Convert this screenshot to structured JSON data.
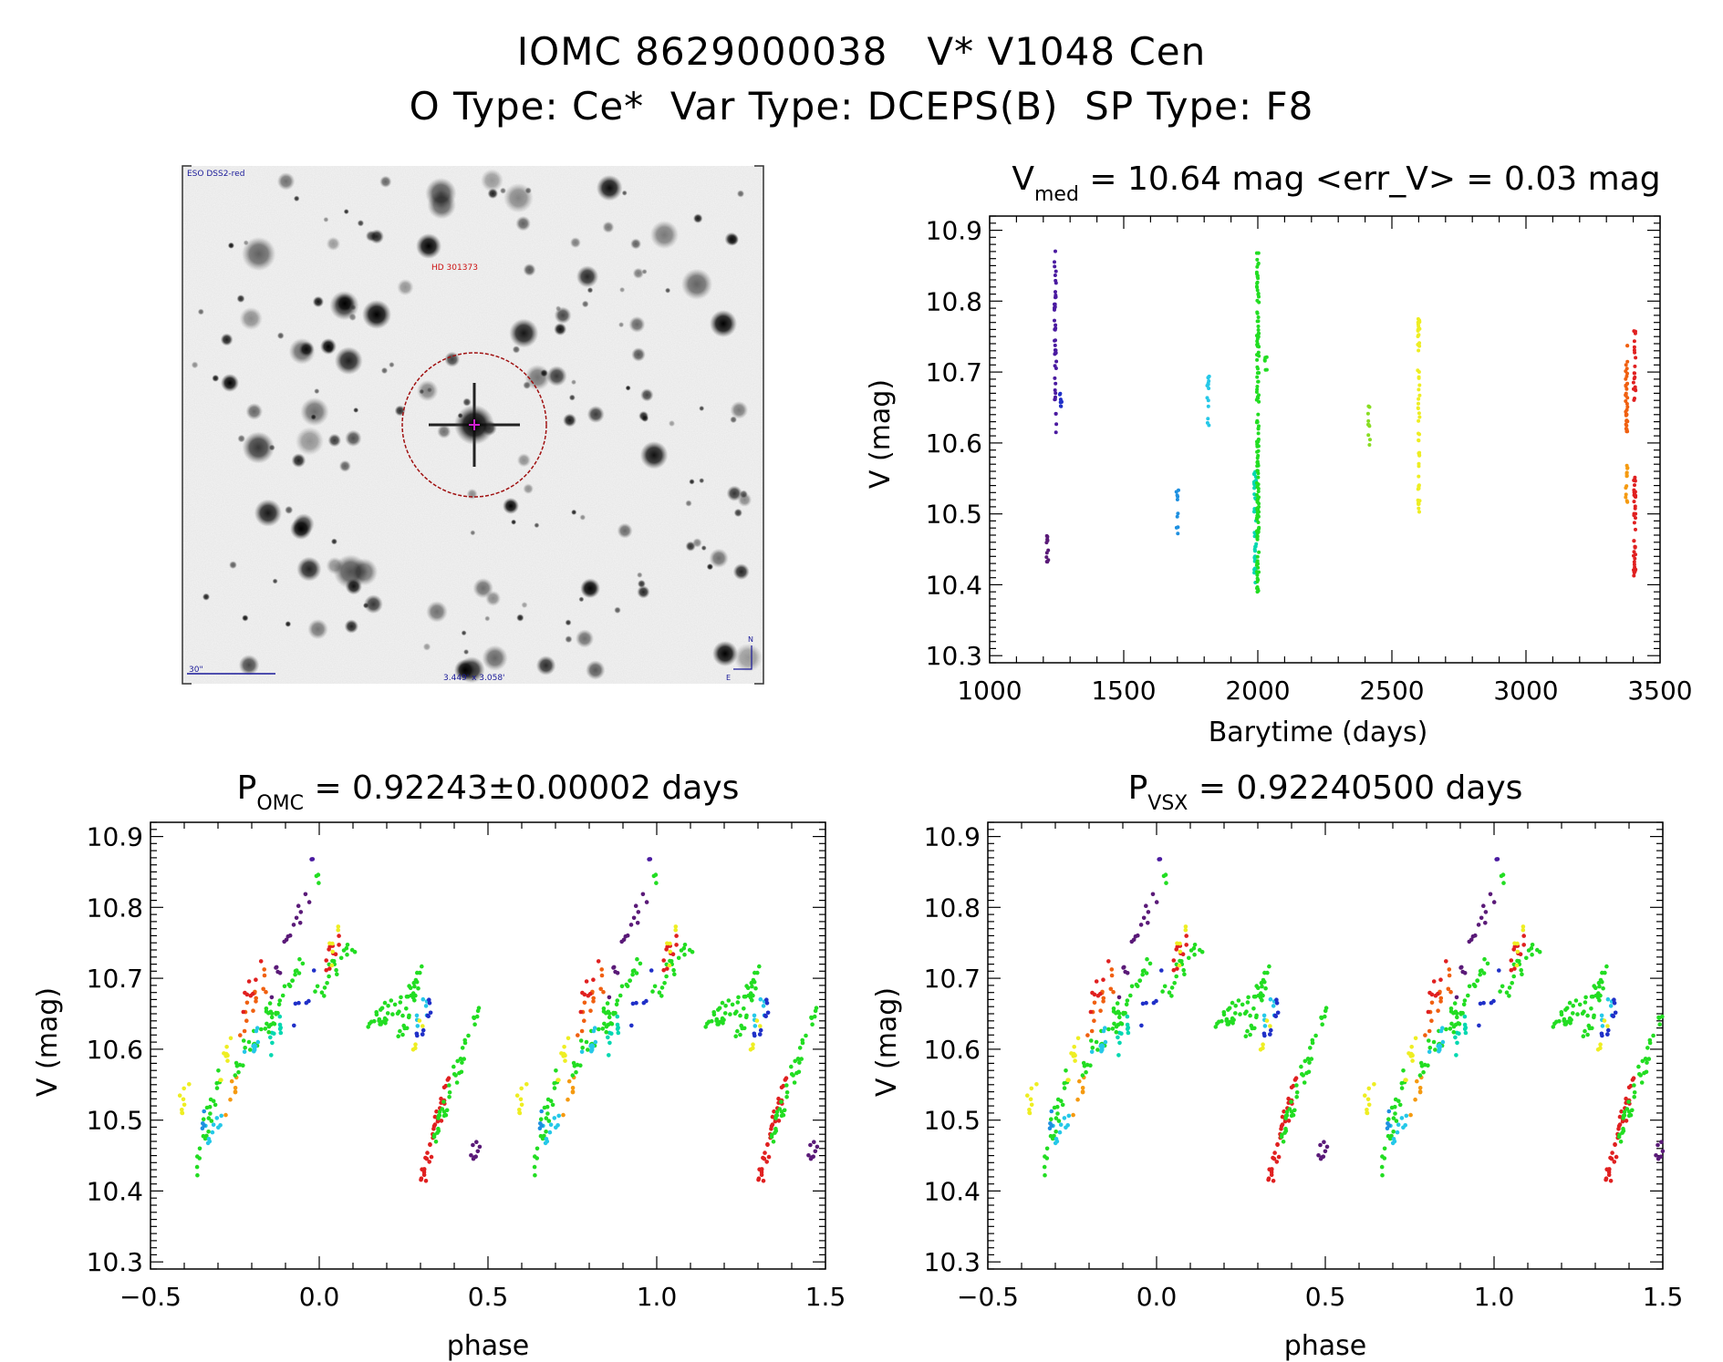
{
  "header": {
    "line1": "IOMC 8629000038   V* V1048 Cen",
    "line2": "O Type: Ce*  Var Type: DCEPS(B)  SP Type: F8"
  },
  "finder": {
    "survey_label": "ESO DSS2-red",
    "target_label": "HD 301373",
    "scale_label": "30\"",
    "fov_label": "3.449' x 3.058'",
    "north_label": "N",
    "east_label": "E"
  },
  "chart_data": [
    {
      "type": "scatter",
      "title_main": "V",
      "title_sub": "med",
      "title_rest": " = 10.64 mag <err_V> = 0.03 mag",
      "xlabel": "Barytime (days)",
      "ylabel": "V (mag)",
      "xlim": [
        1000,
        3500
      ],
      "ylim": [
        10.92,
        10.29
      ],
      "xticks": [
        "1000",
        "1500",
        "2000",
        "2500",
        "3000",
        "3500"
      ],
      "yticks": [
        "10.3",
        "10.4",
        "10.5",
        "10.6",
        "10.7",
        "10.8",
        "10.9"
      ],
      "series": [
        {
          "name": "season-1a",
          "color": "#5a1a78",
          "x": 1215,
          "ymin": 10.425,
          "ymax": 10.475,
          "n": 12
        },
        {
          "name": "season-1b",
          "color": "#4a1aa0",
          "x": 1245,
          "ymin": 10.61,
          "ymax": 10.88,
          "n": 45
        },
        {
          "name": "season-1c",
          "color": "#2030c8",
          "x": 1265,
          "ymin": 10.65,
          "ymax": 10.67,
          "n": 8
        },
        {
          "name": "season-2",
          "color": "#1e90e0",
          "x": 1700,
          "ymin": 10.47,
          "ymax": 10.535,
          "n": 10
        },
        {
          "name": "season-3",
          "color": "#25c8e8",
          "x": 1815,
          "ymin": 10.61,
          "ymax": 10.705,
          "n": 14
        },
        {
          "name": "season-4a",
          "color": "#00d8b0",
          "x": 1990,
          "ymin": 10.4,
          "ymax": 10.56,
          "n": 40
        },
        {
          "name": "season-4b",
          "color": "#22dd22",
          "x": 2000,
          "ymin": 10.39,
          "ymax": 10.87,
          "n": 150
        },
        {
          "name": "season-4c",
          "color": "#22dd22",
          "x": 2030,
          "ymin": 10.7,
          "ymax": 10.73,
          "n": 6
        },
        {
          "name": "season-5",
          "color": "#88dd22",
          "x": 2415,
          "ymin": 10.595,
          "ymax": 10.66,
          "n": 10
        },
        {
          "name": "season-6",
          "color": "#eeee22",
          "x": 2600,
          "ymin": 10.5,
          "ymax": 10.78,
          "n": 55
        },
        {
          "name": "season-7a",
          "color": "#f59a10",
          "x": 3375,
          "ymin": 10.51,
          "ymax": 10.57,
          "n": 14
        },
        {
          "name": "season-7b",
          "color": "#f06010",
          "x": 3375,
          "ymin": 10.615,
          "ymax": 10.74,
          "n": 35
        },
        {
          "name": "season-7c",
          "color": "#e02020",
          "x": 3405,
          "ymin": 10.405,
          "ymax": 10.555,
          "n": 40
        },
        {
          "name": "season-7d",
          "color": "#e02020",
          "x": 3405,
          "ymin": 10.66,
          "ymax": 10.765,
          "n": 20
        }
      ]
    },
    {
      "type": "scatter",
      "title_main": "P",
      "title_sub": "OMC",
      "title_rest": " = 0.92243±0.00002 days",
      "xlabel": "phase",
      "ylabel": "V (mag)",
      "xlim": [
        -0.5,
        1.5
      ],
      "ylim": [
        10.92,
        10.29
      ],
      "xticks": [
        "−0.5",
        "0.0",
        "0.5",
        "1.0",
        "1.5"
      ],
      "yticks": [
        "10.3",
        "10.4",
        "10.5",
        "10.6",
        "10.7",
        "10.8",
        "10.9"
      ],
      "phase_shift": 0,
      "segments": [
        {
          "color": "#22dd22",
          "x0": -0.38,
          "x1": -0.3,
          "y0": 10.395,
          "y1": 10.56,
          "n": 22
        },
        {
          "color": "#25c8e8",
          "x0": -0.34,
          "x1": -0.28,
          "y0": 10.47,
          "y1": 10.52,
          "n": 10
        },
        {
          "color": "#1e90e0",
          "x0": -0.35,
          "x1": -0.34,
          "y0": 10.49,
          "y1": 10.5,
          "n": 4
        },
        {
          "color": "#eeee22",
          "x0": -0.41,
          "x1": -0.37,
          "y0": 10.52,
          "y1": 10.55,
          "n": 8
        },
        {
          "color": "#f59a10",
          "x0": -0.27,
          "x1": -0.24,
          "y0": 10.52,
          "y1": 10.56,
          "n": 7
        },
        {
          "color": "#eeee22",
          "x0": -0.29,
          "x1": -0.26,
          "y0": 10.56,
          "y1": 10.62,
          "n": 10
        },
        {
          "color": "#22dd22",
          "x0": -0.25,
          "x1": -0.14,
          "y0": 10.57,
          "y1": 10.66,
          "n": 22
        },
        {
          "color": "#25c8e8",
          "x0": -0.22,
          "x1": -0.17,
          "y0": 10.59,
          "y1": 10.63,
          "n": 10
        },
        {
          "color": "#00d8b0",
          "x0": -0.15,
          "x1": -0.1,
          "y0": 10.6,
          "y1": 10.64,
          "n": 10
        },
        {
          "color": "#f06010",
          "x0": -0.23,
          "x1": -0.16,
          "y0": 10.63,
          "y1": 10.7,
          "n": 14
        },
        {
          "color": "#e02020",
          "x0": -0.22,
          "x1": -0.17,
          "y0": 10.66,
          "y1": 10.73,
          "n": 8
        },
        {
          "color": "#22dd22",
          "x0": -0.16,
          "x1": -0.04,
          "y0": 10.62,
          "y1": 10.74,
          "n": 24
        },
        {
          "color": "#5a1a78",
          "x0": -0.15,
          "x1": -0.03,
          "y0": 10.68,
          "y1": 10.83,
          "n": 16
        },
        {
          "color": "#2030c8",
          "x0": -0.08,
          "x1": -0.02,
          "y0": 10.64,
          "y1": 10.7,
          "n": 6
        },
        {
          "color": "#22dd22",
          "x0": -0.01,
          "x1": 0.03,
          "y0": 10.84,
          "y1": 10.88,
          "n": 3
        },
        {
          "color": "#4a1aa0",
          "x0": -0.02,
          "x1": 0.0,
          "y0": 10.86,
          "y1": 10.88,
          "n": 2
        },
        {
          "color": "#22dd22",
          "x0": -0.01,
          "x1": 0.11,
          "y0": 10.68,
          "y1": 10.75,
          "n": 20
        },
        {
          "color": "#e02020",
          "x0": 0.02,
          "x1": 0.06,
          "y0": 10.72,
          "y1": 10.76,
          "n": 10
        },
        {
          "color": "#eeee22",
          "x0": 0.03,
          "x1": 0.06,
          "y0": 10.73,
          "y1": 10.78,
          "n": 6
        },
        {
          "color": "#22dd22",
          "x0": 0.14,
          "x1": 0.26,
          "y0": 10.63,
          "y1": 10.67,
          "n": 26
        },
        {
          "color": "#22dd22",
          "x0": 0.24,
          "x1": 0.3,
          "y0": 10.62,
          "y1": 10.72,
          "n": 28
        },
        {
          "color": "#25c8e8",
          "x0": 0.27,
          "x1": 0.32,
          "y0": 10.62,
          "y1": 10.66,
          "n": 8
        },
        {
          "color": "#2030c8",
          "x0": 0.29,
          "x1": 0.34,
          "y0": 10.62,
          "y1": 10.68,
          "n": 10
        },
        {
          "color": "#eeee22",
          "x0": 0.28,
          "x1": 0.31,
          "y0": 10.6,
          "y1": 10.65,
          "n": 5
        },
        {
          "color": "#e02020",
          "x0": 0.3,
          "x1": 0.38,
          "y0": 10.41,
          "y1": 10.55,
          "n": 36
        },
        {
          "color": "#22dd22",
          "x0": 0.34,
          "x1": 0.47,
          "y0": 10.48,
          "y1": 10.65,
          "n": 40
        },
        {
          "color": "#5a1a78",
          "x0": 0.44,
          "x1": 0.47,
          "y0": 10.43,
          "y1": 10.47,
          "n": 8
        }
      ]
    },
    {
      "type": "scatter",
      "title_main": "P",
      "title_sub": "VSX",
      "title_rest": " = 0.92240500 days",
      "xlabel": "phase",
      "ylabel": "V (mag)",
      "xlim": [
        -0.5,
        1.5
      ],
      "ylim": [
        10.92,
        10.29
      ],
      "xticks": [
        "−0.5",
        "0.0",
        "0.5",
        "1.0",
        "1.5"
      ],
      "yticks": [
        "10.3",
        "10.4",
        "10.5",
        "10.6",
        "10.7",
        "10.8",
        "10.9"
      ],
      "phase_shift": 0.03
    }
  ]
}
